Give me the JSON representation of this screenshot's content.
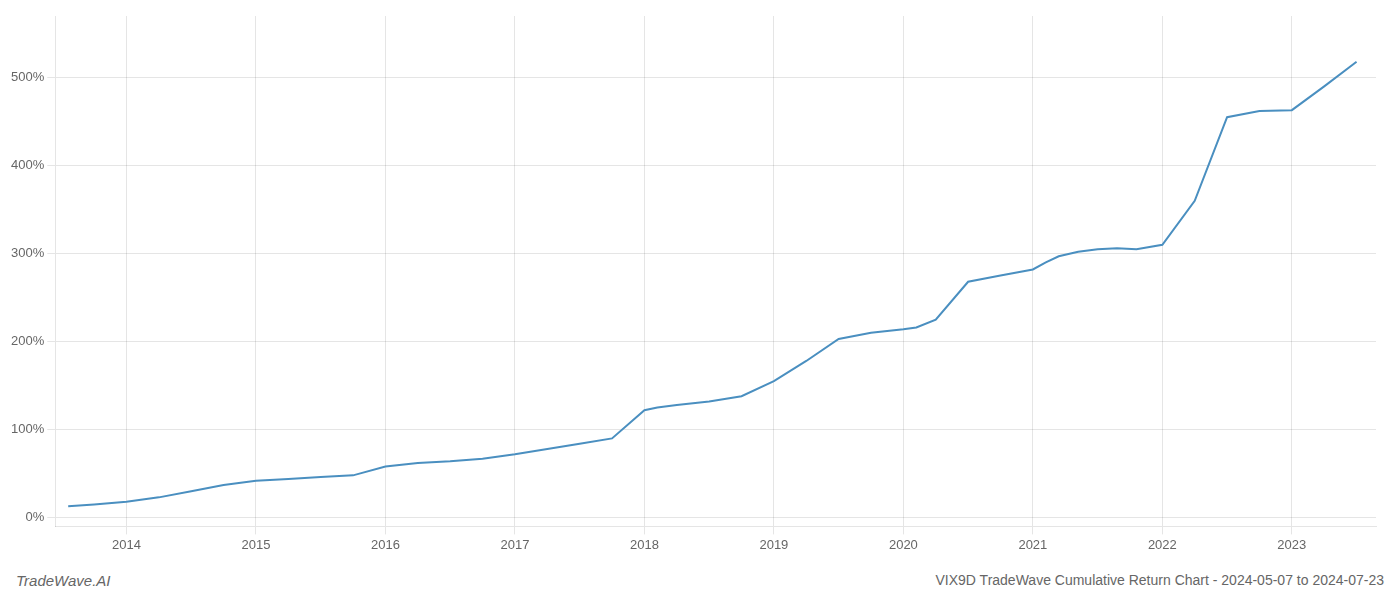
{
  "chart_data": {
    "type": "line",
    "title": "VIX9D TradeWave Cumulative Return Chart - 2024-05-07 to 2024-07-23",
    "annotations": [
      "TradeWave.AI"
    ],
    "color": "#4a8fc0",
    "grid": true,
    "x": [
      2013.55,
      2013.75,
      2014.0,
      2014.25,
      2014.5,
      2014.75,
      2015.0,
      2015.25,
      2015.5,
      2015.75,
      2016.0,
      2016.25,
      2016.5,
      2016.75,
      2017.0,
      2017.25,
      2017.5,
      2017.75,
      2018.0,
      2018.1,
      2018.25,
      2018.5,
      2018.75,
      2019.0,
      2019.25,
      2019.5,
      2019.75,
      2020.0,
      2020.1,
      2020.25,
      2020.5,
      2020.75,
      2021.0,
      2021.1,
      2021.2,
      2021.35,
      2021.5,
      2021.65,
      2021.8,
      2022.0,
      2022.25,
      2022.5,
      2022.75,
      2023.0,
      2023.25,
      2023.5
    ],
    "values": [
      0.13,
      0.15,
      0.18,
      0.23,
      0.3,
      0.37,
      0.42,
      0.44,
      0.46,
      0.48,
      0.58,
      0.62,
      0.64,
      0.67,
      0.72,
      0.78,
      0.84,
      0.9,
      1.22,
      1.25,
      1.28,
      1.32,
      1.38,
      1.55,
      1.78,
      2.03,
      2.1,
      2.14,
      2.16,
      2.25,
      2.68,
      2.75,
      2.82,
      2.9,
      2.97,
      3.02,
      3.05,
      3.06,
      3.05,
      3.1,
      3.6,
      4.55,
      4.62,
      4.63,
      4.9,
      5.18
    ],
    "xlim": [
      2013.45,
      2023.65
    ],
    "xticks": [
      2014,
      2015,
      2016,
      2017,
      2018,
      2019,
      2020,
      2021,
      2022,
      2023
    ],
    "ylim": [
      -0.1,
      5.7
    ],
    "yticks": [
      {
        "value": 0,
        "label": "0%"
      },
      {
        "value": 1,
        "label": "100%"
      },
      {
        "value": 2,
        "label": "200%"
      },
      {
        "value": 3,
        "label": "300%"
      },
      {
        "value": 4,
        "label": "400%"
      },
      {
        "value": 5,
        "label": "500%"
      }
    ]
  }
}
